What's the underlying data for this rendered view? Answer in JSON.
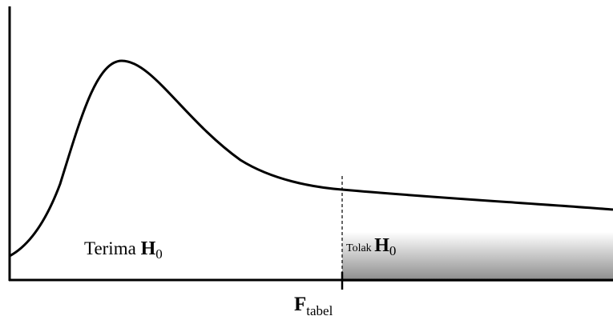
{
  "regions": [
    {
      "label": "Terima",
      "symbol": "H",
      "subscript": "0"
    },
    {
      "label": "Tolak",
      "symbol": "H",
      "subscript": "0"
    }
  ],
  "critical": {
    "symbol": "F",
    "subscript": "tabel"
  }
}
